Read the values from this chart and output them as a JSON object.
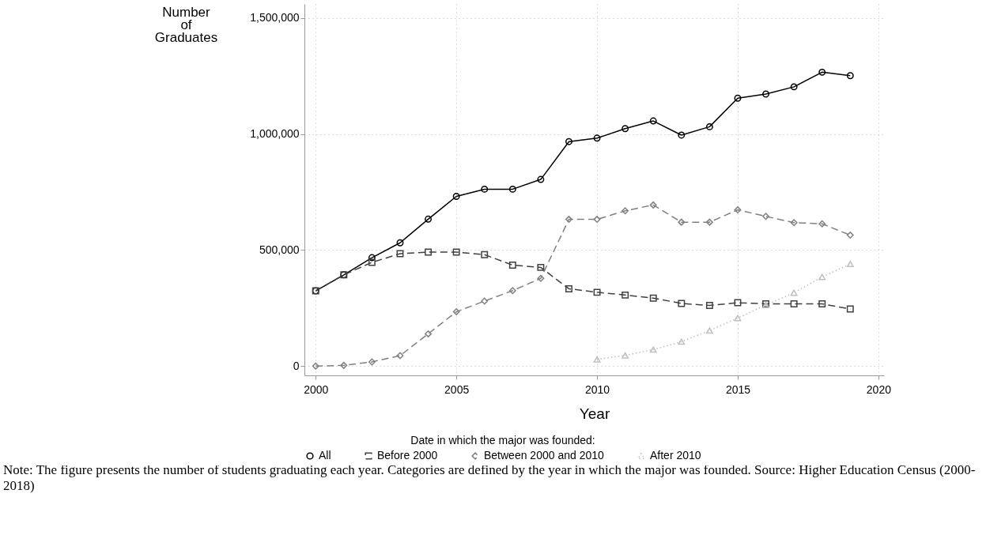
{
  "chart_data": {
    "type": "line",
    "xlabel": "Year",
    "ylabel": "Number of Graduates",
    "legend_title": "Date in which the major was founded:",
    "x": [
      2000,
      2001,
      2002,
      2003,
      2004,
      2005,
      2006,
      2007,
      2008,
      2009,
      2010,
      2011,
      2012,
      2013,
      2014,
      2015,
      2016,
      2017,
      2018,
      2019
    ],
    "xlim": [
      1999.6,
      2020.2
    ],
    "xticks": [
      2000,
      2005,
      2010,
      2015,
      2020
    ],
    "ylim": [
      -40000,
      1560000
    ],
    "yticks": [
      {
        "value": 0,
        "label": "0"
      },
      {
        "value": 500000,
        "label": "500,000"
      },
      {
        "value": 1000000,
        "label": "1,000,000"
      },
      {
        "value": 1500000,
        "label": "1,500,000"
      }
    ],
    "grid": true,
    "legend": "bottom",
    "series": [
      {
        "name": "All",
        "color": "#000000",
        "marker": "circle",
        "line_style": "solid",
        "values": [
          324000,
          393000,
          467000,
          531000,
          633000,
          731000,
          762000,
          762000,
          804000,
          967000,
          982000,
          1023000,
          1056000,
          995000,
          1031000,
          1154000,
          1172000,
          1203000,
          1266000,
          1251000
        ]
      },
      {
        "name": "Before 2000",
        "color": "#404040",
        "marker": "square",
        "line_style": "dashed",
        "values": [
          324000,
          393000,
          447000,
          484000,
          491000,
          491000,
          480000,
          435000,
          425000,
          333000,
          318000,
          306000,
          293000,
          270000,
          261000,
          273000,
          268000,
          268000,
          268000,
          246000
        ]
      },
      {
        "name": "Between 2000 and 2010",
        "color": "#808080",
        "marker": "diamond",
        "line_style": "dashed",
        "values": [
          0,
          3000,
          18000,
          45000,
          139000,
          234000,
          280000,
          325000,
          378000,
          632000,
          632000,
          669000,
          694000,
          620000,
          620000,
          673000,
          645000,
          618000,
          613000,
          564000
        ]
      },
      {
        "name": "After 2010",
        "color": "#bfbfbf",
        "marker": "triangle",
        "line_style": "dotted",
        "values": [
          null,
          null,
          null,
          null,
          null,
          null,
          null,
          null,
          null,
          null,
          29000,
          46000,
          71000,
          105000,
          153000,
          207000,
          263000,
          316000,
          384000,
          440000
        ]
      }
    ],
    "annotations": [
      "Note: The figure presents the number of students graduating each year. Categories are defined by the year in which the major was founded. Source: Higher Education Census (2000-2018)"
    ]
  }
}
